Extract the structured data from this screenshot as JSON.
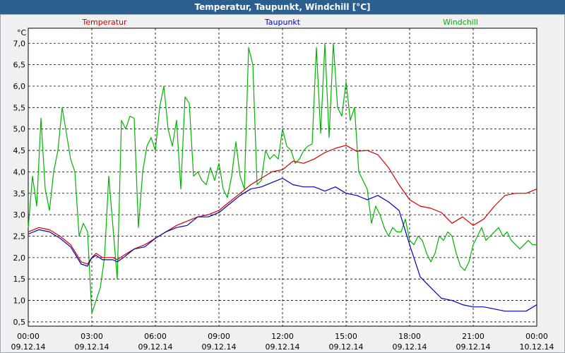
{
  "window": {
    "title": "Temperatur, Taupunkt, Windchill [°C]"
  },
  "chart_data": {
    "type": "line",
    "title": "Temperatur, Taupunkt, Windchill [°C]",
    "unit_label": "°C",
    "ylim": [
      0.4,
      7.35
    ],
    "y_ticks": [
      "0,5",
      "1,0",
      "1,5",
      "2,0",
      "2,5",
      "3,0",
      "3,5",
      "4,0",
      "4,5",
      "5,0",
      "5,5",
      "6,0",
      "6,5",
      "7,0"
    ],
    "x_range_hours": [
      0,
      24
    ],
    "x_ticks": [
      {
        "time": "00:00",
        "date": "09.12.14"
      },
      {
        "time": "03:00",
        "date": "09.12.14"
      },
      {
        "time": "06:00",
        "date": "09.12.14"
      },
      {
        "time": "09:00",
        "date": "09.12.14"
      },
      {
        "time": "12:00",
        "date": "09.12.14"
      },
      {
        "time": "15:00",
        "date": "09.12.14"
      },
      {
        "time": "18:00",
        "date": "09.12.14"
      },
      {
        "time": "21:00",
        "date": "09.12.14"
      },
      {
        "time": "00:00",
        "date": "10.12.14"
      }
    ],
    "grid": true,
    "series": [
      {
        "name": "Temperatur",
        "color": "#d40000",
        "x": [
          0,
          0.5,
          1,
          1.5,
          2,
          2.5,
          2.8,
          3,
          3.2,
          3.5,
          4,
          4.2,
          4.5,
          5,
          5.5,
          6,
          6.5,
          7,
          7.5,
          8,
          8.5,
          9,
          9.5,
          10,
          10.5,
          11,
          11.5,
          12,
          12.5,
          13,
          13.5,
          14,
          14.5,
          15,
          15.5,
          16,
          16.5,
          17,
          17.5,
          18,
          18.5,
          19,
          19.5,
          20,
          20.5,
          21,
          21.5,
          22,
          22.5,
          23,
          23.5,
          24
        ],
        "values": [
          2.6,
          2.7,
          2.65,
          2.5,
          2.3,
          1.9,
          1.85,
          2.0,
          2.1,
          2.0,
          2.0,
          1.95,
          2.05,
          2.2,
          2.3,
          2.45,
          2.6,
          2.75,
          2.85,
          2.95,
          3.0,
          3.1,
          3.3,
          3.5,
          3.7,
          3.85,
          4.0,
          4.05,
          4.25,
          4.2,
          4.3,
          4.45,
          4.55,
          4.62,
          4.48,
          4.5,
          4.4,
          4.1,
          3.7,
          3.35,
          3.2,
          3.15,
          3.05,
          2.8,
          2.95,
          2.75,
          2.9,
          3.2,
          3.45,
          3.5,
          3.5,
          3.6
        ]
      },
      {
        "name": "Taupunkt",
        "color": "#0000c8",
        "x": [
          0,
          0.5,
          1,
          1.5,
          2,
          2.5,
          2.8,
          3,
          3.2,
          3.5,
          4,
          4.2,
          4.5,
          5,
          5.5,
          6,
          6.5,
          7,
          7.5,
          8,
          8.5,
          9,
          9.5,
          10,
          10.5,
          11,
          11.5,
          12,
          12.5,
          13,
          13.5,
          14,
          14.5,
          15,
          15.5,
          16,
          16.5,
          17,
          17.5,
          18,
          18.5,
          19,
          19.5,
          20,
          20.5,
          21,
          21.5,
          22,
          22.5,
          23,
          23.5,
          24
        ],
        "values": [
          2.55,
          2.65,
          2.6,
          2.45,
          2.25,
          1.85,
          1.8,
          2.0,
          2.05,
          1.95,
          1.95,
          1.9,
          2.0,
          2.2,
          2.25,
          2.45,
          2.6,
          2.7,
          2.75,
          2.95,
          2.95,
          3.05,
          3.25,
          3.45,
          3.6,
          3.65,
          3.75,
          3.85,
          3.7,
          3.65,
          3.65,
          3.55,
          3.65,
          3.5,
          3.45,
          3.35,
          3.45,
          3.3,
          3.1,
          2.3,
          1.55,
          1.3,
          1.05,
          1.0,
          0.9,
          0.85,
          0.85,
          0.8,
          0.75,
          0.75,
          0.75,
          0.9
        ]
      },
      {
        "name": "Windchill",
        "color": "#00b400",
        "x": [
          0,
          0.2,
          0.4,
          0.6,
          0.8,
          1.0,
          1.2,
          1.4,
          1.6,
          1.8,
          2.0,
          2.2,
          2.4,
          2.6,
          2.8,
          3.0,
          3.2,
          3.4,
          3.6,
          3.8,
          4.0,
          4.2,
          4.4,
          4.6,
          4.8,
          5.0,
          5.2,
          5.4,
          5.6,
          5.8,
          6.0,
          6.2,
          6.4,
          6.6,
          6.8,
          7.0,
          7.2,
          7.4,
          7.6,
          7.8,
          8.0,
          8.2,
          8.4,
          8.6,
          8.8,
          9.0,
          9.2,
          9.4,
          9.6,
          9.8,
          10.0,
          10.2,
          10.4,
          10.6,
          10.8,
          11.0,
          11.2,
          11.4,
          11.6,
          11.8,
          12.0,
          12.2,
          12.4,
          12.6,
          12.8,
          13.0,
          13.2,
          13.4,
          13.6,
          13.8,
          14.0,
          14.2,
          14.4,
          14.6,
          14.8,
          15.0,
          15.2,
          15.4,
          15.6,
          15.8,
          16.0,
          16.2,
          16.4,
          16.6,
          16.8,
          17.0,
          17.2,
          17.4,
          17.6,
          17.8,
          18.0,
          18.2,
          18.4,
          18.6,
          18.8,
          19.0,
          19.2,
          19.4,
          19.6,
          19.8,
          20.0,
          20.2,
          20.4,
          20.6,
          20.8,
          21.0,
          21.2,
          21.4,
          21.6,
          21.8,
          22.0,
          22.2,
          22.4,
          22.6,
          22.8,
          23.0,
          23.2,
          23.4,
          23.6,
          23.8,
          24.0
        ],
        "values": [
          2.7,
          3.9,
          3.2,
          5.25,
          3.6,
          3.1,
          4.0,
          4.5,
          5.5,
          4.9,
          4.3,
          4.0,
          2.5,
          2.8,
          2.6,
          0.7,
          1.0,
          1.3,
          2.0,
          3.9,
          2.7,
          1.5,
          5.2,
          5.0,
          5.3,
          5.25,
          2.7,
          4.0,
          4.6,
          4.8,
          4.5,
          5.5,
          6.0,
          5.0,
          4.6,
          5.2,
          3.6,
          5.75,
          5.6,
          3.9,
          4.0,
          3.8,
          3.7,
          4.1,
          3.8,
          4.2,
          3.6,
          3.4,
          3.9,
          4.7,
          3.9,
          3.6,
          6.9,
          6.5,
          3.7,
          3.8,
          4.5,
          4.3,
          4.4,
          4.3,
          5.0,
          4.6,
          4.5,
          4.2,
          4.3,
          4.5,
          4.6,
          4.65,
          6.9,
          4.9,
          7.0,
          4.8,
          7.0,
          5.5,
          5.3,
          6.1,
          5.2,
          5.5,
          4.0,
          3.8,
          3.6,
          2.8,
          3.2,
          3.0,
          2.7,
          2.5,
          2.7,
          2.6,
          2.6,
          2.9,
          2.4,
          2.3,
          2.5,
          2.4,
          2.1,
          1.9,
          2.1,
          2.5,
          2.4,
          2.6,
          2.5,
          2.1,
          1.8,
          1.7,
          1.9,
          2.3,
          2.5,
          2.7,
          2.4,
          2.5,
          2.6,
          2.7,
          2.5,
          2.6,
          2.4,
          2.3,
          2.2,
          2.3,
          2.4,
          2.3,
          2.3
        ]
      }
    ]
  }
}
